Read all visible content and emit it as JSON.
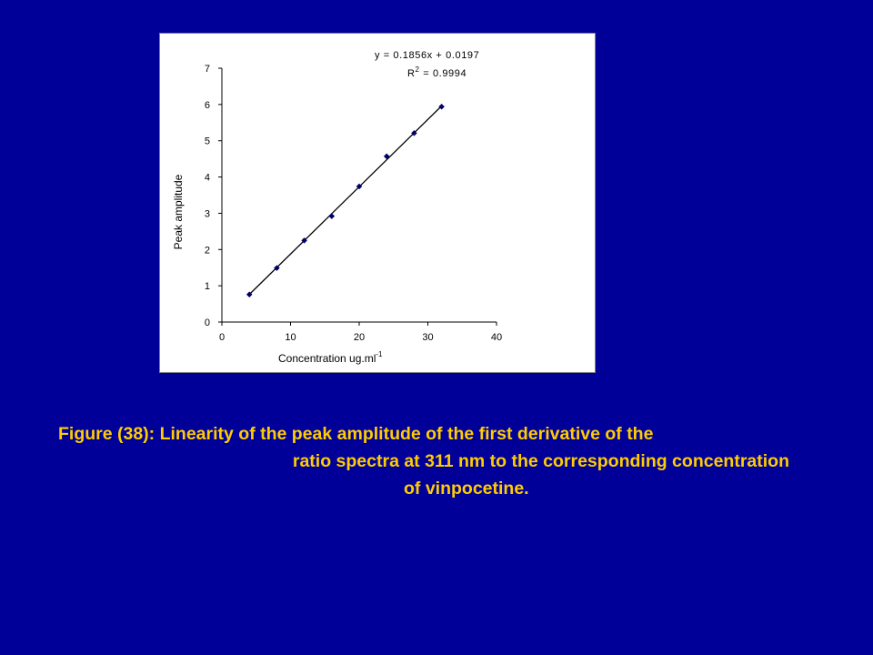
{
  "slide": {
    "background": "#000099",
    "caption_color": "#ffcc00",
    "caption": {
      "line1": "Figure (38): Linearity of the peak amplitude of the first derivative of the",
      "line2": "ratio spectra at 311 nm to the corresponding concentration",
      "line3": "of vinpocetine."
    }
  },
  "chart_data": {
    "type": "scatter",
    "title": "",
    "xlabel": "Concentration ug.ml",
    "xlabel_superscript": "-1",
    "ylabel": "Peak amplitude",
    "xlim": [
      0,
      40
    ],
    "ylim": [
      0,
      7
    ],
    "xticks": [
      0,
      10,
      20,
      30,
      40
    ],
    "yticks": [
      0,
      1,
      2,
      3,
      4,
      5,
      6,
      7
    ],
    "grid": false,
    "legend": "none",
    "series": [
      {
        "x": [
          4,
          8,
          12,
          16,
          20,
          24,
          28,
          32
        ],
        "y": [
          0.76,
          1.49,
          2.25,
          2.92,
          3.74,
          4.57,
          5.21,
          5.94
        ],
        "color": "#000066"
      }
    ],
    "trendline": {
      "type": "linear",
      "slope": 0.1856,
      "intercept": 0.0197,
      "x_range": [
        4,
        32
      ],
      "color": "#000000"
    },
    "annotations": {
      "equation": "y = 0.1856x + 0.0197",
      "r2_prefix": "R",
      "r2_superscript": "2",
      "r2_value": " = 0.9994"
    }
  }
}
